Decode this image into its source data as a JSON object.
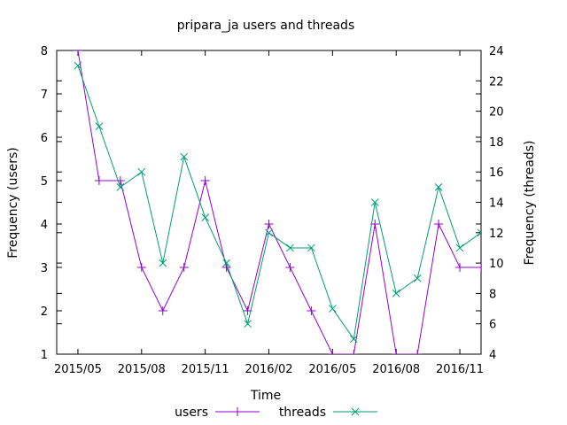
{
  "chart_data": {
    "type": "line",
    "title": "pripara_ja users and threads",
    "xlabel": "Time",
    "ylabel": "Frequency (users)",
    "y2label": "Frequency (threads)",
    "ylim": [
      1,
      8
    ],
    "y2lim": [
      4,
      24
    ],
    "xlim": [
      "2015-04",
      "2016-12"
    ],
    "x_ticks": [
      "2015/05",
      "2015/08",
      "2015/11",
      "2016/02",
      "2016/05",
      "2016/08",
      "2016/11"
    ],
    "y_ticks": [
      1,
      2,
      3,
      4,
      5,
      6,
      7,
      8
    ],
    "y2_ticks": [
      4,
      6,
      8,
      10,
      12,
      14,
      16,
      18,
      20,
      22,
      24
    ],
    "legend_position": "bottom",
    "grid": false,
    "series": [
      {
        "name": "users",
        "axis": "y",
        "color": "#9400d3",
        "marker": "+",
        "x": [
          "2015-05",
          "2015-06",
          "2015-07",
          "2015-08",
          "2015-09",
          "2015-10",
          "2015-11",
          "2015-12",
          "2016-01",
          "2016-02",
          "2016-03",
          "2016-04",
          "2016-05",
          "2016-06",
          "2016-07",
          "2016-08",
          "2016-09",
          "2016-10",
          "2016-11",
          "2016-12"
        ],
        "values": [
          8,
          5,
          5,
          3,
          2,
          3,
          5,
          3,
          2,
          4,
          3,
          2,
          1,
          1,
          4,
          1,
          1,
          4,
          3,
          3
        ]
      },
      {
        "name": "threads",
        "axis": "y2",
        "color": "#009e73",
        "marker": "x",
        "x": [
          "2015-05",
          "2015-06",
          "2015-07",
          "2015-08",
          "2015-09",
          "2015-10",
          "2015-11",
          "2015-12",
          "2016-01",
          "2016-02",
          "2016-03",
          "2016-04",
          "2016-05",
          "2016-06",
          "2016-07",
          "2016-08",
          "2016-09",
          "2016-10",
          "2016-11",
          "2016-12"
        ],
        "values": [
          23,
          19,
          15,
          16,
          10,
          17,
          13,
          10,
          6,
          12,
          11,
          11,
          7,
          5,
          14,
          8,
          9,
          15,
          11,
          12
        ]
      }
    ]
  }
}
